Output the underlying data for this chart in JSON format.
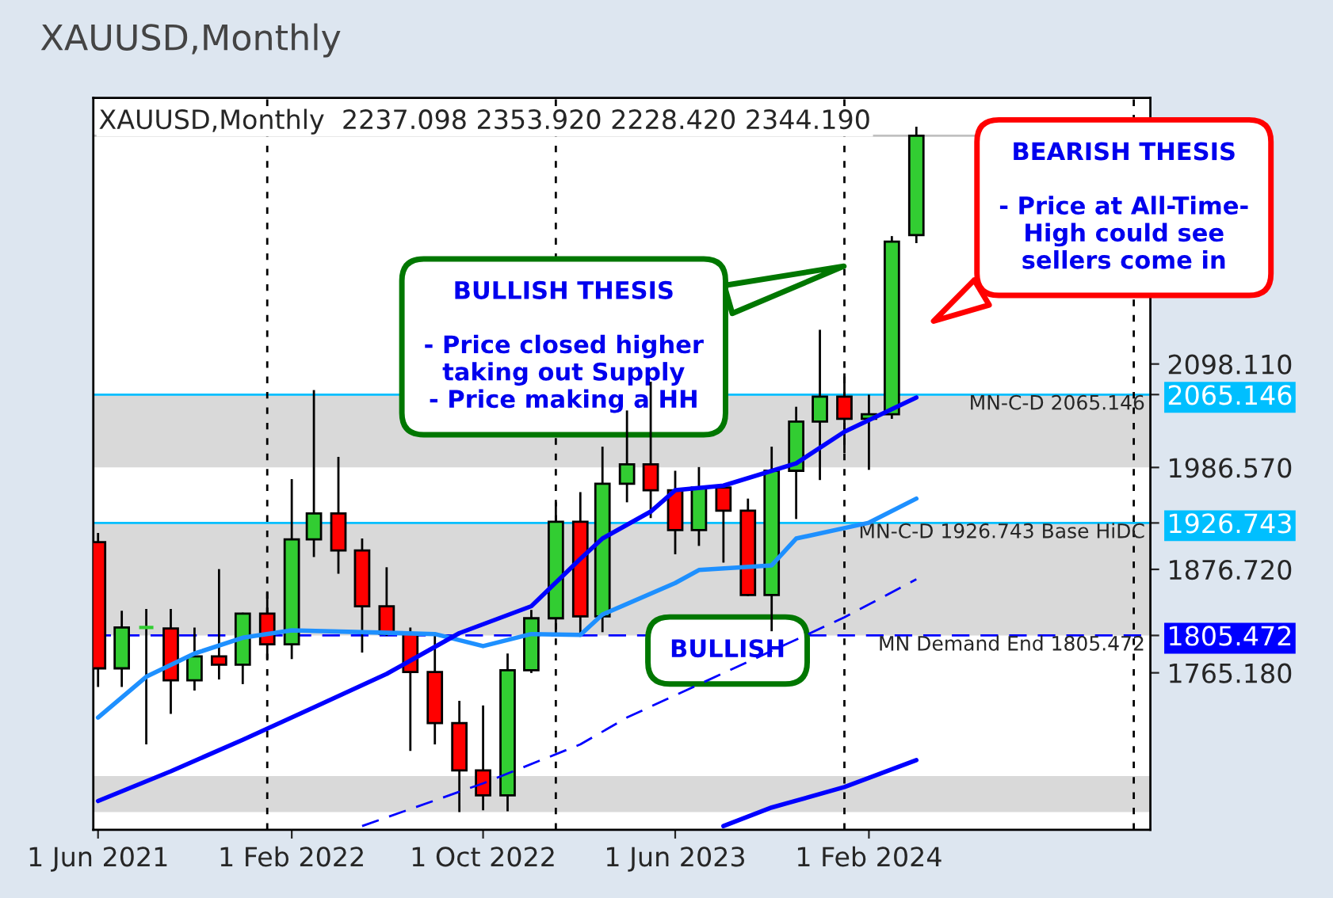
{
  "chart_data": {
    "type": "candlestick",
    "title": "XAUUSD,Monthly",
    "subtitle": "XAUUSD,Monthly  2237.098 2353.920 2228.420 2344.190",
    "x": [
      "2021-06",
      "2021-07",
      "2021-08",
      "2021-09",
      "2021-10",
      "2021-11",
      "2021-12",
      "2022-01",
      "2022-02",
      "2022-03",
      "2022-04",
      "2022-05",
      "2022-06",
      "2022-07",
      "2022-08",
      "2022-09",
      "2022-10",
      "2022-11",
      "2022-12",
      "2023-01",
      "2023-02",
      "2023-03",
      "2023-04",
      "2023-05",
      "2023-06",
      "2023-07",
      "2023-08",
      "2023-09",
      "2023-10",
      "2023-11",
      "2023-12",
      "2024-01",
      "2024-02",
      "2024-03",
      "2024-04"
    ],
    "ohlc": [
      [
        1906,
        1916,
        1750,
        1770
      ],
      [
        1770,
        1832,
        1750,
        1814
      ],
      [
        1814,
        1834,
        1688,
        1814
      ],
      [
        1813,
        1834,
        1721,
        1757
      ],
      [
        1757,
        1814,
        1746,
        1783
      ],
      [
        1783,
        1877,
        1758,
        1774
      ],
      [
        1774,
        1830,
        1753,
        1829
      ],
      [
        1829,
        1853,
        1780,
        1796
      ],
      [
        1796,
        1974,
        1780,
        1909
      ],
      [
        1909,
        2070,
        1890,
        1937
      ],
      [
        1937,
        1998,
        1872,
        1897
      ],
      [
        1897,
        1910,
        1787,
        1837
      ],
      [
        1837,
        1879,
        1805,
        1807
      ],
      [
        1807,
        1814,
        1681,
        1766
      ],
      [
        1766,
        1807,
        1688,
        1711
      ],
      [
        1711,
        1735,
        1615,
        1660
      ],
      [
        1660,
        1730,
        1617,
        1633
      ],
      [
        1633,
        1786,
        1616,
        1768
      ],
      [
        1768,
        1833,
        1765,
        1824
      ],
      [
        1824,
        1949,
        1805,
        1928
      ],
      [
        1928,
        1960,
        1804,
        1826
      ],
      [
        1826,
        2009,
        1809,
        1969
      ],
      [
        1969,
        2048,
        1949,
        1990
      ],
      [
        1990,
        2079,
        1932,
        1962
      ],
      [
        1962,
        1983,
        1893,
        1919
      ],
      [
        1919,
        1987,
        1902,
        1965
      ],
      [
        1965,
        1966,
        1884,
        1940
      ],
      [
        1940,
        1953,
        1848,
        1849
      ],
      [
        1849,
        2009,
        1810,
        1983
      ],
      [
        1983,
        2052,
        1931,
        2036
      ],
      [
        2036,
        2135,
        1973,
        2063
      ],
      [
        2063,
        2088,
        2002,
        2039
      ],
      [
        2039,
        2065,
        1984,
        2044
      ],
      [
        2044,
        2236,
        2039,
        2230
      ],
      [
        2237.098,
        2353.92,
        2228.42,
        2344.19
      ]
    ],
    "colors": [
      "#ff0000",
      "#32cd32",
      "#32cd32",
      "#ff0000",
      "#32cd32",
      "#ff0000",
      "#32cd32",
      "#ff0000",
      "#32cd32",
      "#32cd32",
      "#ff0000",
      "#ff0000",
      "#ff0000",
      "#ff0000",
      "#ff0000",
      "#ff0000",
      "#ff0000",
      "#32cd32",
      "#32cd32",
      "#32cd32",
      "#ff0000",
      "#32cd32",
      "#32cd32",
      "#ff0000",
      "#ff0000",
      "#32cd32",
      "#ff0000",
      "#ff0000",
      "#32cd32",
      "#32cd32",
      "#32cd32",
      "#ff0000",
      "#32cd32",
      "#32cd32",
      "#32cd32"
    ],
    "series": [
      {
        "type": "line",
        "color": "#1e90ff",
        "line_style": "solid",
        "x": [
          "2021-06",
          "2021-08",
          "2021-10",
          "2021-12",
          "2022-02",
          "2022-08",
          "2022-10",
          "2022-12",
          "2023-02",
          "2023-03",
          "2023-06",
          "2023-07",
          "2023-10",
          "2023-11",
          "2024-02",
          "2024-04"
        ],
        "values": [
          1717,
          1761,
          1786,
          1803,
          1811,
          1807,
          1794,
          1807,
          1806,
          1828,
          1862,
          1876,
          1881,
          1910,
          1927,
          1953
        ]
      },
      {
        "type": "line",
        "color": "#0000ff",
        "line_style": "solid",
        "x": [
          "2021-06",
          "2021-09",
          "2021-12",
          "2022-03",
          "2022-06",
          "2022-09",
          "2022-12",
          "2023-02",
          "2023-03",
          "2023-05",
          "2023-06",
          "2023-08",
          "2023-11",
          "2024-01",
          "2024-04"
        ],
        "values": [
          1627,
          1659,
          1693,
          1728,
          1764,
          1808,
          1837,
          1888,
          1910,
          1939,
          1962,
          1967,
          1991,
          2025,
          2062
        ]
      },
      {
        "type": "line",
        "color": "#0000ff",
        "line_style": "dashed",
        "x": [
          "2022-05",
          "2022-10",
          "2023-02",
          "2023-04",
          "2023-11",
          "2024-01",
          "2024-04"
        ],
        "values": [
          1600,
          1646,
          1688,
          1717,
          1801,
          1825,
          1866
        ]
      },
      {
        "type": "line",
        "color": "#0000ff",
        "line_style": "solid",
        "x": [
          "2023-08",
          "2023-10",
          "2024-01",
          "2024-04"
        ],
        "values": [
          1600,
          1620,
          1642,
          1671
        ]
      }
    ],
    "xlim": [
      "2021-05-26",
      "2025-01-22"
    ],
    "xticks": [
      {
        "value": "2021-06-01",
        "label": "1 Jun 2021"
      },
      {
        "value": "2022-02-01",
        "label": "1 Feb 2022"
      },
      {
        "value": "2022-10-01",
        "label": "1 Oct 2022"
      },
      {
        "value": "2023-06-01",
        "label": "1 Jun 2023"
      },
      {
        "value": "2024-02-01",
        "label": "1 Feb 2024"
      }
    ],
    "ylim": [
      1596,
      2385
    ],
    "yticks": [
      {
        "value": 2098.11,
        "label": "2098.110"
      },
      {
        "value": 2065.146,
        "label": "2065.146"
      },
      {
        "value": 1986.57,
        "label": "1986.570"
      },
      {
        "value": 1926.743,
        "label": "1926.743"
      },
      {
        "value": 1876.72,
        "label": "1876.720"
      },
      {
        "value": 1805.472,
        "label": "1805.472"
      },
      {
        "value": 1765.18,
        "label": "1765.180"
      }
    ],
    "ref_lines": [
      {
        "axis": "y",
        "value": 2065.146,
        "label": "MN-C-D 2065.146",
        "color": "#00bfff",
        "line_style": "solid"
      },
      {
        "axis": "y",
        "value": 1926.743,
        "label": "MN-C-D 1926.743 Base HiDC",
        "color": "#00bfff",
        "line_style": "solid"
      },
      {
        "axis": "y",
        "value": 1805.472,
        "label": "MN Demand End 1805.472",
        "color": "#0000ff",
        "line_style": "dashed"
      },
      {
        "axis": "y",
        "value": 2344.19,
        "color": "#c0c0c0",
        "line_style": "solid"
      },
      {
        "axis": "x",
        "value": "2022-01",
        "color": "#000000",
        "line_style": "dotted"
      },
      {
        "axis": "x",
        "value": "2023-01",
        "color": "#000000",
        "line_style": "dotted"
      },
      {
        "axis": "x",
        "value": "2024-01",
        "color": "#000000",
        "line_style": "dotted"
      },
      {
        "axis": "x",
        "value": "2025-01",
        "color": "#000000",
        "line_style": "dotted"
      }
    ],
    "bands": [
      {
        "axis": "y",
        "from": 1986.57,
        "to": 2065.146,
        "color": "#d9d9d9"
      },
      {
        "axis": "y",
        "from": 1805.472,
        "to": 1926.743,
        "color": "#d9d9d9"
      },
      {
        "axis": "y",
        "from": 1615,
        "to": 1654,
        "color": "#d9d9d9"
      }
    ],
    "annotations": [
      "BULLISH THESIS\n\n- Price closed higher\ntaking out Supply\n- Price making a HH",
      "BEARISH THESIS\n\n- Price at All-Time-\nHigh could see\nsellers come in",
      "BULLISH"
    ],
    "grid": false,
    "legend": false
  }
}
